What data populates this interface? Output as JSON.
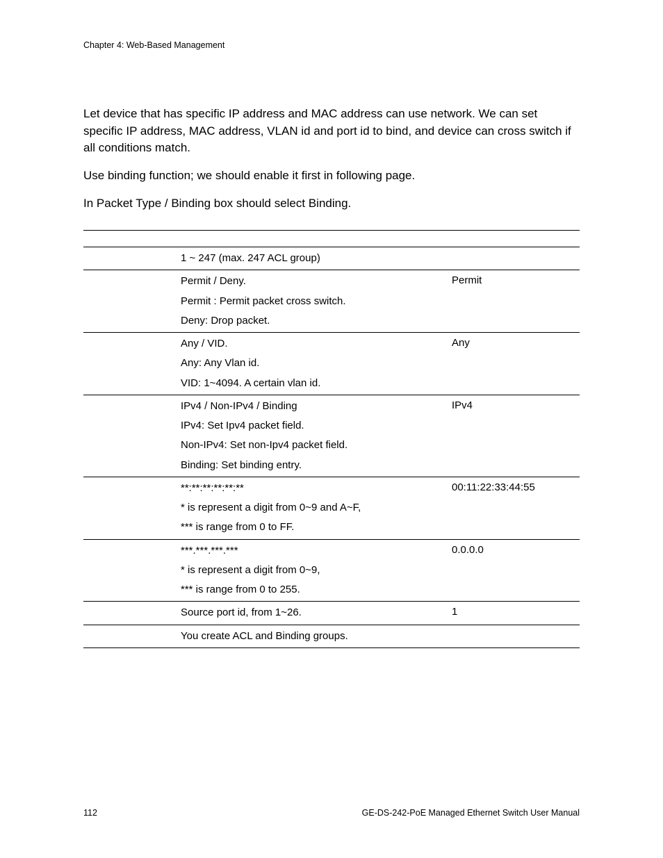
{
  "header": {
    "chapter": "Chapter 4: Web-Based Management"
  },
  "body": {
    "p1": "Let device that has specific IP address and MAC address can use network. We can set specific IP address, MAC address, VLAN id and port id to bind, and device can cross switch if all conditions match.",
    "p2": "Use binding function; we should enable it first in following page.",
    "p3": "In Packet Type / Binding box should select Binding."
  },
  "table": {
    "columns": [
      "",
      "",
      ""
    ],
    "rows": [
      {
        "param": "",
        "desc": [
          "1 ~ 247 (max. 247 ACL group)"
        ],
        "default": ""
      },
      {
        "param": "",
        "desc": [
          "Permit / Deny.",
          "Permit : Permit packet cross switch.",
          "Deny: Drop packet."
        ],
        "default": "Permit"
      },
      {
        "param": "",
        "desc": [
          "Any / VID.",
          "Any: Any Vlan id.",
          "VID: 1~4094. A certain vlan id."
        ],
        "default": "Any"
      },
      {
        "param": "",
        "desc": [
          "IPv4 / Non-IPv4 / Binding",
          "IPv4: Set Ipv4 packet field.",
          "Non-IPv4: Set non-Ipv4 packet field.",
          "Binding: Set binding entry."
        ],
        "default": "IPv4"
      },
      {
        "param": "",
        "desc": [
          "**:**:**:**:**:**",
          "* is represent a digit from 0~9 and A~F,",
          "*** is range from 0 to FF."
        ],
        "default": "00:11:22:33:44:55"
      },
      {
        "param": "",
        "desc": [
          "***.***.***.***",
          "* is represent a digit from 0~9,",
          "*** is range from 0 to 255."
        ],
        "default": "0.0.0.0"
      },
      {
        "param": "",
        "desc": [
          "Source port id, from 1~26."
        ],
        "default": "1"
      },
      {
        "param": "",
        "desc": [
          "You create ACL and Binding groups."
        ],
        "default": ""
      }
    ]
  },
  "footer": {
    "page_number": "112",
    "manual_title": "GE-DS-242-PoE Managed Ethernet Switch User Manual"
  }
}
